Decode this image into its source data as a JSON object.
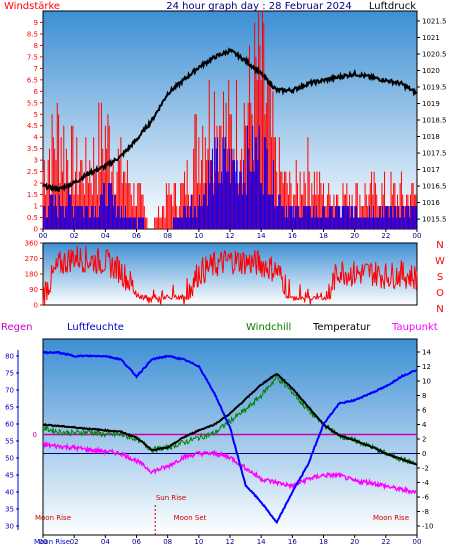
{
  "header": {
    "left": "Windstärke",
    "center": "24 hour graph day : 28 Februar 2024",
    "right": "Luftdruck"
  },
  "panel3_header": {
    "regen": "Regen",
    "luftfeuchte": "Luftfeuchte",
    "windchill": "Windchill",
    "temperatur": "Temperatur",
    "taupunkt": "Taupunkt"
  },
  "compass": [
    "N",
    "W",
    "S",
    "O",
    "N"
  ],
  "events": {
    "sun_rise": "Sun Rise",
    "moon_rise_left": "Moon Rise",
    "moon_set": "Moon Set",
    "moon_rise_right": "Moon Rise",
    "moon_rise_bottom": "Moon Rise"
  },
  "colors": {
    "wind_gust": "#ff0000",
    "wind_avg": "#0000ff",
    "pressure": "#000000",
    "winddir": "#ff0000",
    "humidity": "#0000ff",
    "temperature": "#000000",
    "windchill": "#008000",
    "dewpoint": "#ff00ff",
    "freeze_line": "#cc00aa",
    "bg_top": "#3d8fd4",
    "bg_bottom": "#ffffff"
  },
  "chart_data": [
    {
      "type": "line",
      "title": "24 hour graph day : 28 Februar 2024",
      "x_ticks": [
        "00",
        "02",
        "04",
        "06",
        "08",
        "10",
        "12",
        "14",
        "16",
        "18",
        "20",
        "22",
        "00"
      ],
      "y_left_label": "Windstärke",
      "y_left_ticks": [
        "0",
        "0.5",
        "1",
        "1.5",
        "2",
        "2.5",
        "3",
        "3.5",
        "4",
        "4.5",
        "5",
        "5.5",
        "6",
        "6.5",
        "7",
        "7.5",
        "8",
        "8.5",
        "9"
      ],
      "ylim_left": [
        0,
        9.5
      ],
      "y_right_label": "Luftdruck",
      "y_right_ticks": [
        "1015.5",
        "1016",
        "1016.5",
        "1017",
        "1017.5",
        "1018",
        "1018.5",
        "1019",
        "1019.5",
        "1020",
        "1020.5",
        "1021",
        "1021.5"
      ],
      "ylim_right": [
        1015.2,
        1021.8
      ],
      "series": [
        {
          "name": "Luftdruck",
          "x": [
            0,
            1,
            2,
            3,
            4,
            5,
            6,
            7,
            8,
            9,
            10,
            11,
            12,
            13,
            14,
            15,
            16,
            17,
            18,
            19,
            20,
            21,
            22,
            23,
            24
          ],
          "values": [
            1016.5,
            1016.4,
            1016.6,
            1016.9,
            1017.1,
            1017.4,
            1017.9,
            1018.5,
            1019.3,
            1019.7,
            1020.1,
            1020.4,
            1020.6,
            1020.3,
            1019.9,
            1019.4,
            1019.4,
            1019.6,
            1019.7,
            1019.8,
            1019.9,
            1019.8,
            1019.7,
            1019.6,
            1019.3
          ]
        },
        {
          "name": "Windstärke (Böen)",
          "x": [
            0,
            1,
            2,
            3,
            4,
            5,
            6,
            7,
            8,
            9,
            10,
            11,
            12,
            13,
            14,
            15,
            16,
            17,
            18,
            19,
            20,
            21,
            22,
            23,
            24
          ],
          "values": [
            3.5,
            5.5,
            3.5,
            3.5,
            5.5,
            3.5,
            2,
            0,
            2,
            2,
            5.5,
            7,
            5.5,
            6.5,
            9,
            3.5,
            2,
            3.5,
            2,
            2,
            2,
            2,
            2,
            2,
            2
          ]
        },
        {
          "name": "Windstärke (Mittel)",
          "x": [
            0,
            1,
            2,
            3,
            4,
            5,
            6,
            7,
            8,
            9,
            10,
            11,
            12,
            13,
            14,
            15,
            16,
            17,
            18,
            19,
            20,
            21,
            22,
            23,
            24
          ],
          "values": [
            1,
            1.5,
            1.5,
            1,
            2,
            1,
            0.5,
            0,
            0,
            1,
            1.5,
            3.5,
            3.5,
            3.5,
            4.5,
            2,
            1,
            1,
            1,
            1,
            1,
            1,
            1,
            1,
            1
          ]
        }
      ]
    },
    {
      "type": "line",
      "y_ticks": [
        "0",
        "90",
        "180",
        "270",
        "360"
      ],
      "ylim": [
        0,
        360
      ],
      "series": [
        {
          "name": "Windrichtung",
          "x": [
            0,
            1,
            2,
            3,
            4,
            5,
            6,
            7,
            8,
            9,
            10,
            11,
            12,
            13,
            14,
            15,
            16,
            17,
            18,
            19,
            20,
            21,
            22,
            23,
            24
          ],
          "values": [
            60,
            230,
            280,
            260,
            250,
            200,
            80,
            40,
            40,
            40,
            190,
            230,
            260,
            250,
            240,
            200,
            60,
            40,
            40,
            200,
            180,
            190,
            170,
            180,
            160
          ]
        }
      ]
    },
    {
      "type": "line",
      "x_ticks": [
        "00",
        "02",
        "04",
        "06",
        "08",
        "10",
        "12",
        "14",
        "16",
        "18",
        "20",
        "22",
        "00"
      ],
      "y_left_ticks": [
        "30",
        "35",
        "40",
        "45",
        "50",
        "55",
        "60",
        "65",
        "70",
        "75",
        "80"
      ],
      "ylim_left": [
        30,
        82
      ],
      "y_left_label": "Luftfeuchte",
      "y_right_ticks": [
        "-10",
        "-8",
        "-6",
        "-4",
        "-2",
        "0",
        "2",
        "4",
        "6",
        "8",
        "10",
        "12",
        "14"
      ],
      "ylim_right": [
        -10,
        14.5
      ],
      "y_mid_tick": "0",
      "series": [
        {
          "name": "Luftfeuchte",
          "x": [
            0,
            1,
            2,
            3,
            4,
            5,
            6,
            7,
            8,
            9,
            10,
            11,
            12,
            13,
            14,
            15,
            16,
            17,
            18,
            19,
            20,
            21,
            22,
            23,
            24
          ],
          "values": [
            81,
            81,
            80,
            80,
            80,
            79,
            74,
            79,
            80,
            79,
            77,
            69,
            59,
            42,
            37,
            31,
            40,
            48,
            60,
            66,
            67,
            69,
            71,
            74,
            76
          ]
        },
        {
          "name": "Temperatur",
          "x": [
            0,
            1,
            2,
            3,
            4,
            5,
            6,
            7,
            8,
            9,
            10,
            11,
            12,
            13,
            14,
            15,
            16,
            17,
            18,
            19,
            20,
            21,
            22,
            23,
            24
          ],
          "values": [
            4,
            3.8,
            3.6,
            3.4,
            3.2,
            3,
            2.2,
            0.5,
            0.8,
            2.2,
            3.2,
            4,
            5.5,
            7.5,
            9.5,
            11,
            9,
            6.5,
            4,
            2.5,
            1.8,
            1,
            0,
            -0.8,
            -1.5
          ]
        },
        {
          "name": "Windchill",
          "x": [
            0,
            1,
            2,
            3,
            4,
            5,
            6,
            7,
            8,
            9,
            10,
            11,
            12,
            13,
            14,
            15,
            16,
            17,
            18,
            19,
            20,
            21,
            22,
            23,
            24
          ],
          "values": [
            3.5,
            3,
            2.8,
            3,
            2.6,
            2.6,
            2,
            0.5,
            0.8,
            1.5,
            2.2,
            2.8,
            4.5,
            6,
            8,
            10.5,
            8.5,
            6,
            4,
            2.5,
            1.8,
            1,
            0,
            -0.8,
            -1.5
          ]
        },
        {
          "name": "Taupunkt",
          "x": [
            0,
            1,
            2,
            3,
            4,
            5,
            6,
            7,
            8,
            9,
            10,
            11,
            12,
            13,
            14,
            15,
            16,
            17,
            18,
            19,
            20,
            21,
            22,
            23,
            24
          ],
          "values": [
            1.2,
            1,
            0.8,
            0.5,
            0.3,
            0,
            -1,
            -2.5,
            -1.8,
            -0.5,
            0,
            0,
            -0.5,
            -2,
            -3.5,
            -4,
            -4.5,
            -3.5,
            -3,
            -3,
            -3.8,
            -4,
            -4.5,
            -5,
            -5.3
          ]
        }
      ]
    }
  ]
}
